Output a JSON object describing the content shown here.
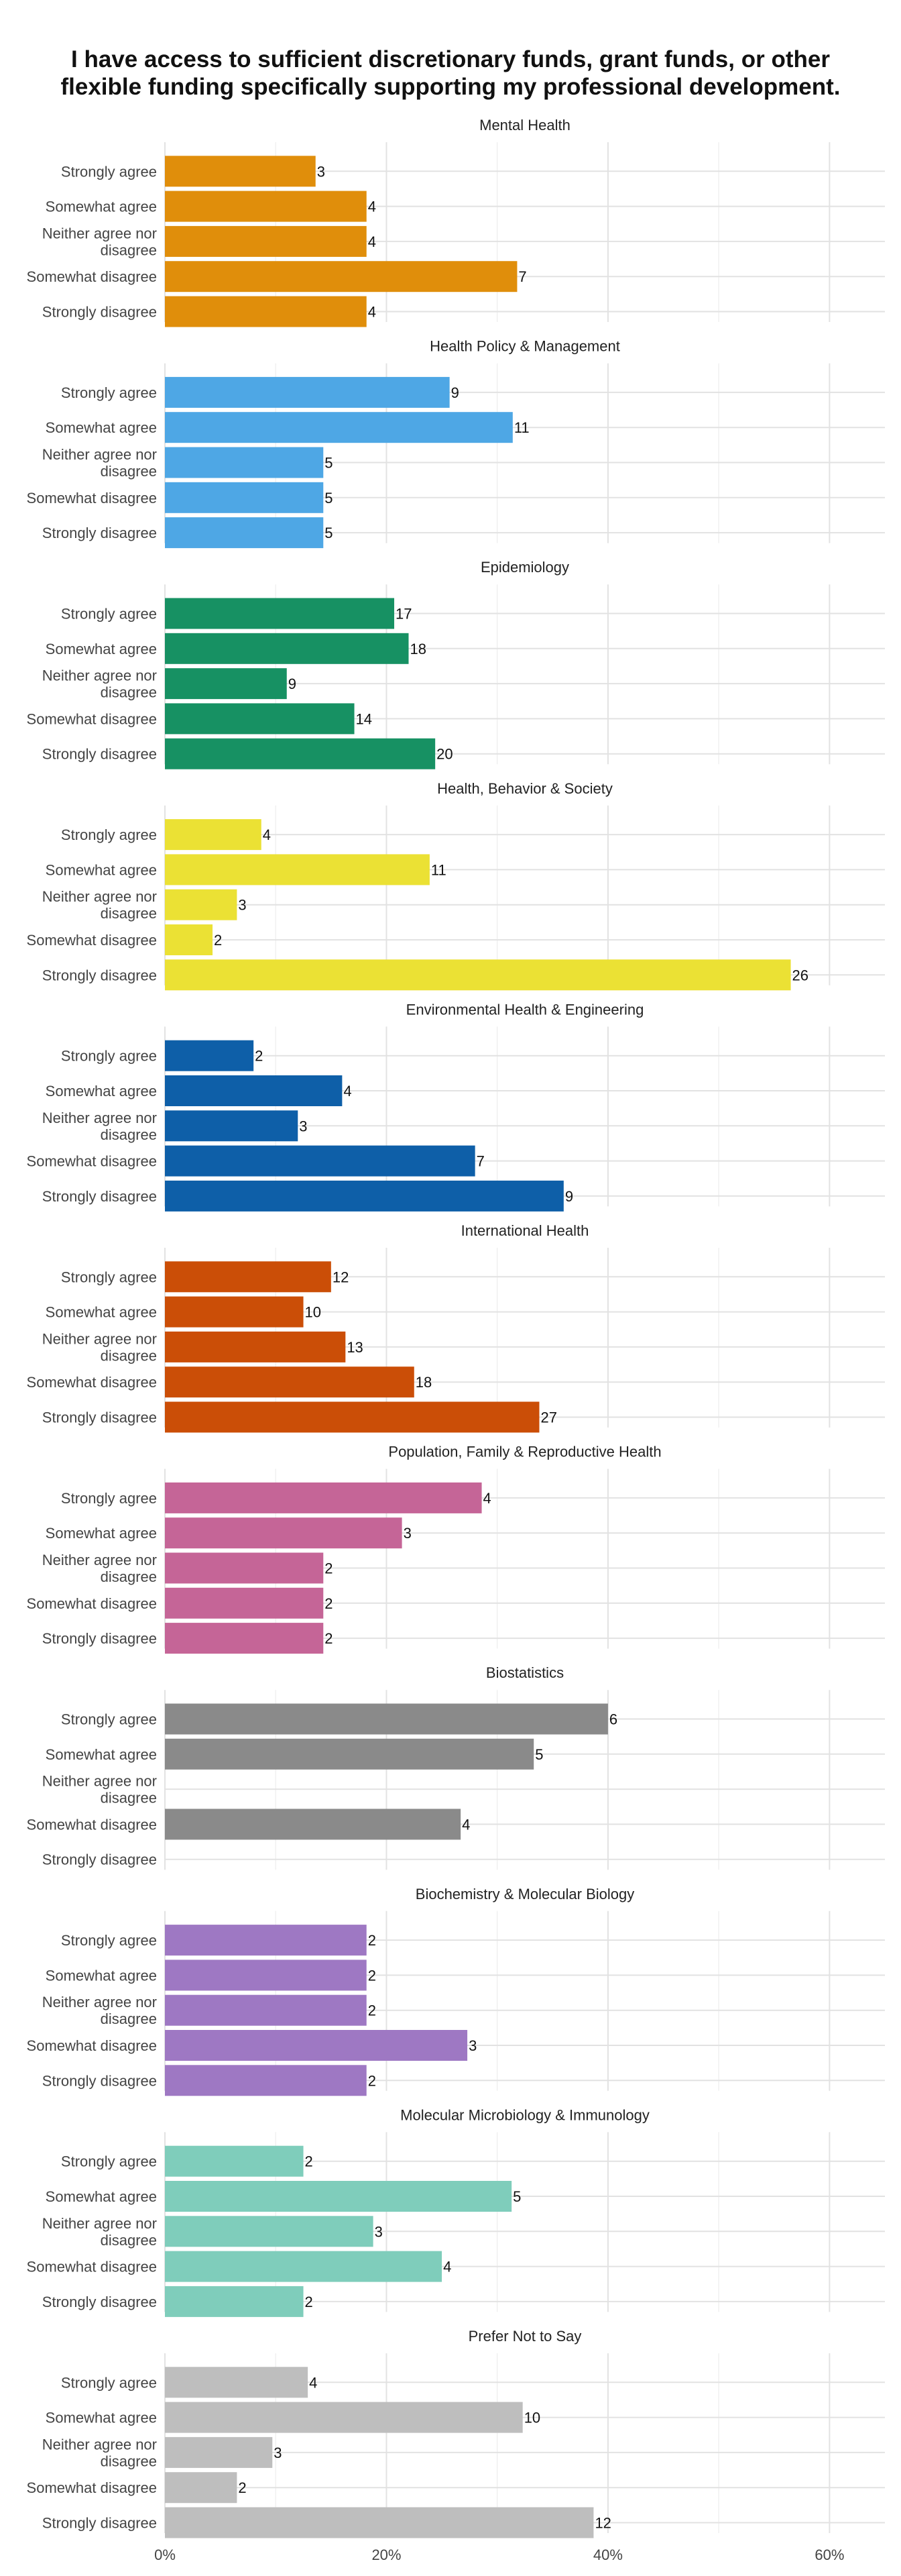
{
  "chart_data": {
    "type": "bar",
    "orientation": "horizontal",
    "title_lines": [
      "I have access to sufficient discretionary funds, grant funds, or other",
      "flexible funding specifically supporting my professional development."
    ],
    "categories": [
      "Strongly agree",
      "Somewhat agree",
      "Neither agree nor disagree",
      "Somewhat disagree",
      "Strongly disagree"
    ],
    "category_label_lines": [
      [
        "Strongly agree"
      ],
      [
        "Somewhat agree"
      ],
      [
        "Neither agree nor",
        "disagree"
      ],
      [
        "Somewhat disagree"
      ],
      [
        "Strongly disagree"
      ]
    ],
    "xlim": [
      0,
      65
    ],
    "x_ticks": [
      0,
      20,
      40,
      60
    ],
    "x_tick_labels": [
      "0%",
      "20%",
      "40%",
      "60%"
    ],
    "grid": true,
    "panels": [
      {
        "title": "Mental Health",
        "color": "#E08E0B",
        "percent": [
          13.6,
          18.2,
          18.2,
          31.8,
          18.2
        ],
        "counts": [
          3,
          4,
          4,
          7,
          4
        ]
      },
      {
        "title": "Health Policy & Management",
        "color": "#4EA7E5",
        "percent": [
          25.7,
          31.4,
          14.3,
          14.3,
          14.3
        ],
        "counts": [
          9,
          11,
          5,
          5,
          5
        ]
      },
      {
        "title": "Epidemiology",
        "color": "#179163",
        "percent": [
          20.7,
          22.0,
          11.0,
          17.1,
          24.4
        ],
        "counts": [
          17,
          18,
          9,
          14,
          20
        ]
      },
      {
        "title": "Health, Behavior & Society",
        "color": "#EBE134",
        "percent": [
          8.7,
          23.9,
          6.5,
          4.3,
          56.5
        ],
        "counts": [
          4,
          11,
          3,
          2,
          26
        ]
      },
      {
        "title": "Environmental Health & Engineering",
        "color": "#0E5FA8",
        "percent": [
          8.0,
          16.0,
          12.0,
          28.0,
          36.0
        ],
        "counts": [
          2,
          4,
          3,
          7,
          9
        ]
      },
      {
        "title": "International Health",
        "color": "#CB4E07",
        "percent": [
          15.0,
          12.5,
          16.3,
          22.5,
          33.8
        ],
        "counts": [
          12,
          10,
          13,
          18,
          27
        ]
      },
      {
        "title": "Population, Family & Reproductive Health",
        "color": "#C56597",
        "percent": [
          28.6,
          21.4,
          14.3,
          14.3,
          14.3
        ],
        "counts": [
          4,
          3,
          2,
          2,
          2
        ]
      },
      {
        "title": "Biostatistics",
        "color": "#8A8A8A",
        "percent": [
          40.0,
          33.3,
          null,
          26.7,
          null
        ],
        "counts": [
          6,
          5,
          null,
          4,
          null
        ]
      },
      {
        "title": "Biochemistry & Molecular Biology",
        "color": "#9E78C3",
        "percent": [
          18.2,
          18.2,
          18.2,
          27.3,
          18.2
        ],
        "counts": [
          2,
          2,
          2,
          3,
          2
        ]
      },
      {
        "title": "Molecular Microbiology & Immunology",
        "color": "#7FCDBB",
        "percent": [
          12.5,
          31.3,
          18.8,
          25.0,
          12.5
        ],
        "counts": [
          2,
          5,
          3,
          4,
          2
        ]
      },
      {
        "title": "Prefer Not to Say",
        "color": "#BEBEBE",
        "percent": [
          12.9,
          32.3,
          9.7,
          6.5,
          38.7
        ],
        "counts": [
          4,
          10,
          3,
          2,
          12
        ]
      }
    ]
  }
}
